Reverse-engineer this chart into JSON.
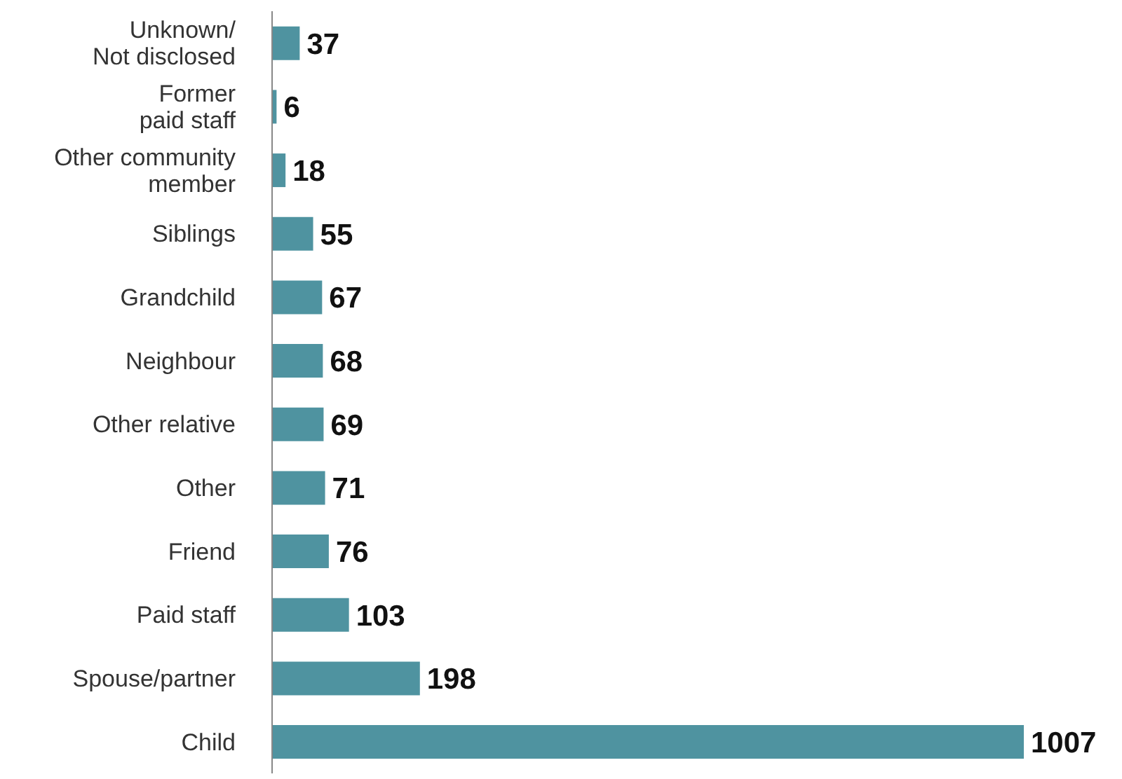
{
  "chart_data": {
    "type": "bar",
    "orientation": "horizontal",
    "categories": [
      "Unknown/\nNot disclosed",
      "Former\npaid staff",
      "Other community\nmember",
      "Siblings",
      "Grandchild",
      "Neighbour",
      "Other relative",
      "Other",
      "Friend",
      "Paid staff",
      "Spouse/partner",
      "Child"
    ],
    "values": [
      37,
      6,
      18,
      55,
      67,
      68,
      69,
      71,
      76,
      103,
      198,
      1007
    ],
    "color": "#4f93a0",
    "data_labels": true
  }
}
